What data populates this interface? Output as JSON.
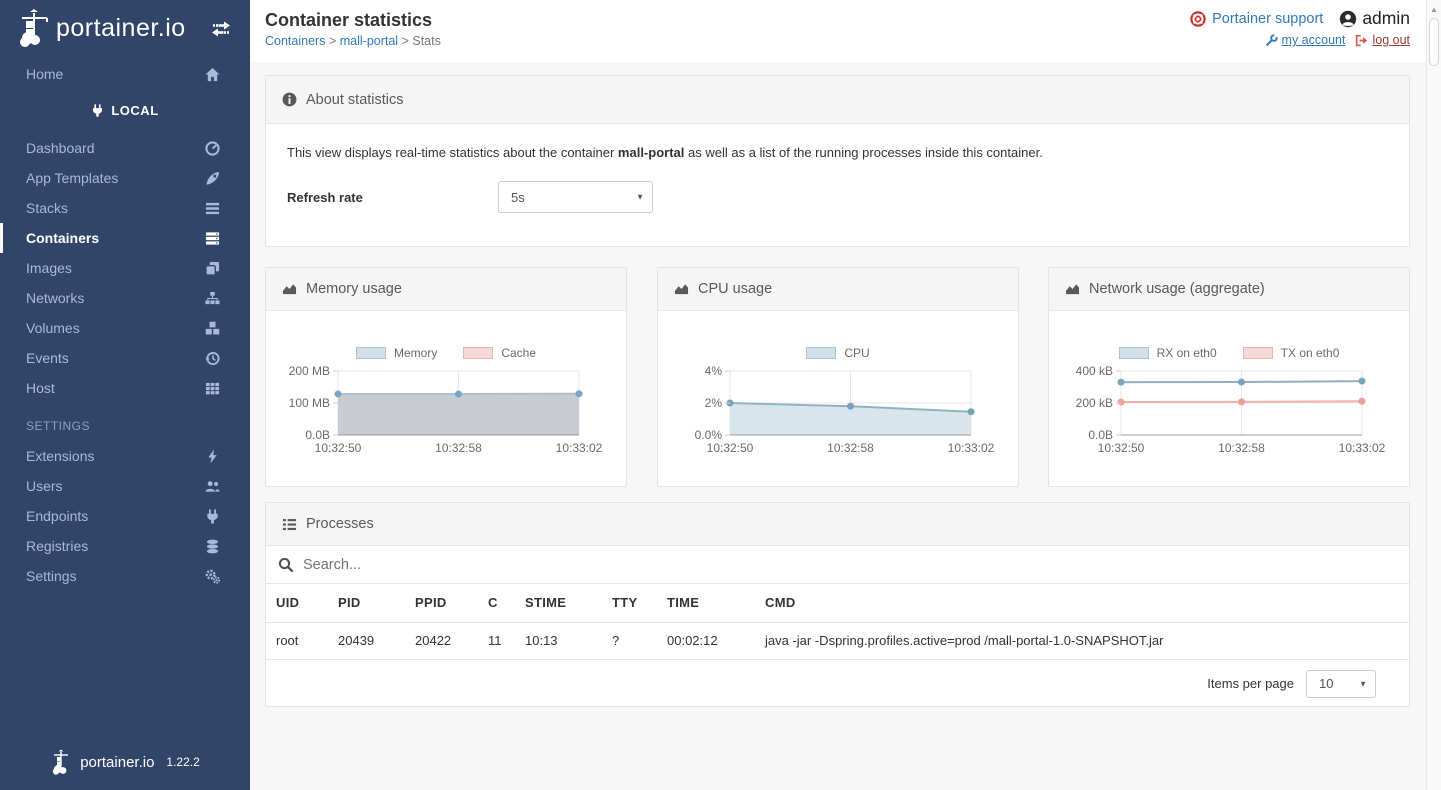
{
  "sidebar": {
    "logo_text": "portainer.io",
    "home_label": "Home",
    "endpoint_label": "LOCAL",
    "items": [
      {
        "label": "Dashboard"
      },
      {
        "label": "App Templates"
      },
      {
        "label": "Stacks"
      },
      {
        "label": "Containers"
      },
      {
        "label": "Images"
      },
      {
        "label": "Networks"
      },
      {
        "label": "Volumes"
      },
      {
        "label": "Events"
      },
      {
        "label": "Host"
      }
    ],
    "settings_header": "SETTINGS",
    "settings_items": [
      {
        "label": "Extensions"
      },
      {
        "label": "Users"
      },
      {
        "label": "Endpoints"
      },
      {
        "label": "Registries"
      },
      {
        "label": "Settings"
      }
    ],
    "footer_logo_text": "portainer.io",
    "footer_version": "1.22.2"
  },
  "header": {
    "title": "Container statistics",
    "breadcrumb": {
      "link1": "Containers",
      "link2": "mall-portal",
      "current": "Stats",
      "separator": ">"
    },
    "support_label": "Portainer support",
    "username": "admin",
    "my_account_label": "my account",
    "log_out_label": "log out"
  },
  "about": {
    "title": "About statistics",
    "body_prefix": "This view displays real-time statistics about the container ",
    "container_name": "mall-portal",
    "body_suffix": " as well as a list of the running processes inside this container.",
    "refresh_label": "Refresh rate",
    "refresh_value": "5s"
  },
  "chart_data": [
    {
      "type": "area",
      "title": "Memory usage",
      "categories": [
        "10:32:50",
        "10:32:58",
        "10:33:02"
      ],
      "ylim": [
        0,
        200
      ],
      "yticks": [
        {
          "label": "200 MB",
          "value": 200
        },
        {
          "label": "100 MB",
          "value": 100
        },
        {
          "label": "0.0B",
          "value": 0
        }
      ],
      "grid": true,
      "legend_position": "top",
      "series": [
        {
          "name": "Memory",
          "values": [
            128,
            128,
            129
          ],
          "stroke": "#a9bed2",
          "fill": "#c9cbd2",
          "point": "#7aa6c4",
          "legend_fill": "#d3e0ea",
          "legend_border": "#a9c4d6"
        },
        {
          "name": "Cache",
          "values": [
            0,
            0,
            0
          ],
          "stroke": "#f0a8a2",
          "fill": "#f5c6c2",
          "point": "#ec9a93",
          "legend_fill": "#f9d9d7",
          "legend_border": "#f0b4ae"
        }
      ]
    },
    {
      "type": "area",
      "title": "CPU usage",
      "categories": [
        "10:32:50",
        "10:32:58",
        "10:33:02"
      ],
      "ylim": [
        0,
        4
      ],
      "yticks": [
        {
          "label": "4%",
          "value": 4
        },
        {
          "label": "2%",
          "value": 2
        },
        {
          "label": "0.0%",
          "value": 0
        }
      ],
      "grid": true,
      "legend_position": "top",
      "series": [
        {
          "name": "CPU",
          "values": [
            2.0,
            1.8,
            1.45
          ],
          "stroke": "#8fb2c5",
          "fill": "#d8e6ec",
          "point": "#76a3bb",
          "legend_fill": "#d3e0ea",
          "legend_border": "#a9c4d6"
        }
      ]
    },
    {
      "type": "line",
      "title": "Network usage (aggregate)",
      "categories": [
        "10:32:50",
        "10:32:58",
        "10:33:02"
      ],
      "ylim": [
        0,
        400
      ],
      "yticks": [
        {
          "label": "400 kB",
          "value": 400
        },
        {
          "label": "200 kB",
          "value": 200
        },
        {
          "label": "0.0B",
          "value": 0
        }
      ],
      "grid": true,
      "legend_position": "top",
      "series": [
        {
          "name": "RX on eth0",
          "values": [
            330,
            331,
            337
          ],
          "stroke": "#8fafc0",
          "fill": null,
          "point": "#7aa3b8",
          "legend_fill": "#d3e0ea",
          "legend_border": "#a9c4d6"
        },
        {
          "name": "TX on eth0",
          "values": [
            206,
            207,
            211
          ],
          "stroke": "#f2b1ac",
          "fill": null,
          "point": "#ee9e97",
          "legend_fill": "#f9d9d7",
          "legend_border": "#f0b4ae"
        }
      ]
    }
  ],
  "processes": {
    "title": "Processes",
    "search_placeholder": "Search...",
    "columns": [
      "UID",
      "PID",
      "PPID",
      "C",
      "STIME",
      "TTY",
      "TIME",
      "CMD"
    ],
    "rows": [
      [
        "root",
        "20439",
        "20422",
        "11",
        "10:13",
        "?",
        "00:02:12",
        "java -jar -Dspring.profiles.active=prod /mall-portal-1.0-SNAPSHOT.jar"
      ]
    ],
    "items_per_page_label": "Items per page",
    "items_per_page_value": "10"
  }
}
